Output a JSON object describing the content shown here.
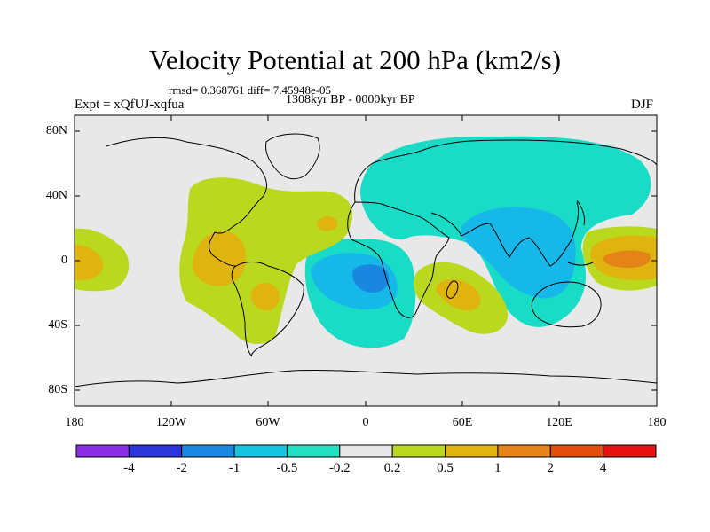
{
  "title": "Velocity Potential at 200 hPa (km2/s)",
  "stats": "rmsd= 0.368761 diff= 7.45948e-05",
  "period": "1308kyr BP - 0000kyr BP",
  "experiment": "Expt = xQfUJ-xqfua",
  "season": "DJF",
  "map": {
    "lat_labels": [
      "80N",
      "40N",
      "0",
      "40S",
      "80S"
    ],
    "lon_labels": [
      "180",
      "120W",
      "60W",
      "0",
      "60E",
      "120E",
      "180"
    ]
  },
  "colorbar": {
    "labels": [
      "-4",
      "-2",
      "-1",
      "-0.5",
      "-0.2",
      "0.2",
      "0.5",
      "1",
      "2",
      "4"
    ],
    "colors": [
      "#8c2ee6",
      "#2b35d8",
      "#1a87e0",
      "#16c4e0",
      "#1fe0c0",
      "#e8e8e8",
      "#b9d81e",
      "#e0b40e",
      "#e48418",
      "#e24e0c",
      "#e81010"
    ]
  },
  "palette": {
    "neutral": "#e8e8e8",
    "teal": "#19dcc6",
    "cyan": "#16b8ea",
    "blue": "#1a86e0",
    "lime": "#b9d81e",
    "gold": "#e0b40e",
    "orange": "#e48418"
  }
}
